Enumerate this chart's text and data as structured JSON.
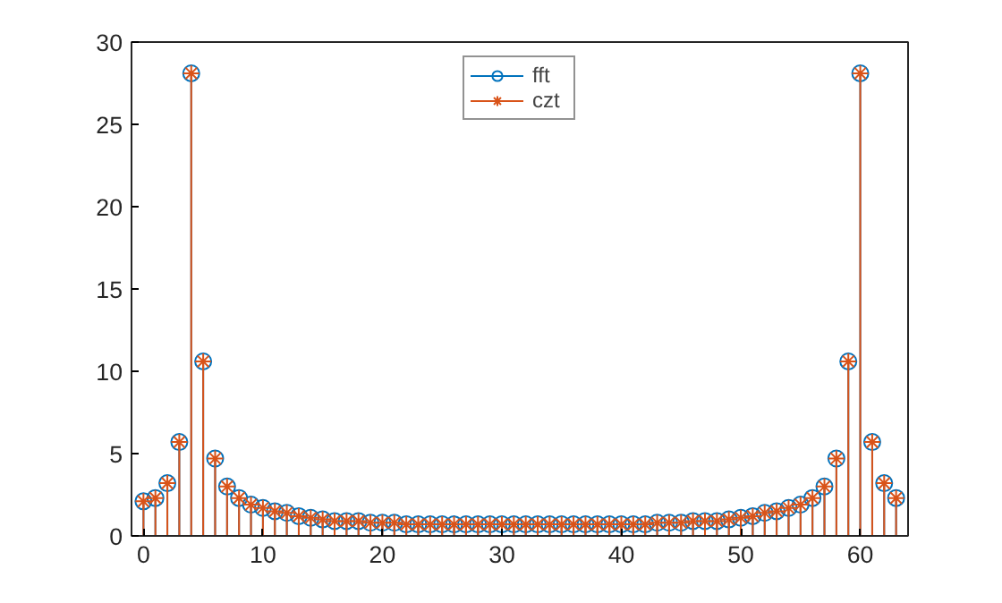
{
  "chart_data": {
    "type": "lollipop",
    "x": [
      0,
      1,
      2,
      3,
      4,
      5,
      6,
      7,
      8,
      9,
      10,
      11,
      12,
      13,
      14,
      15,
      16,
      17,
      18,
      19,
      20,
      21,
      22,
      23,
      24,
      25,
      26,
      27,
      28,
      29,
      30,
      31,
      32,
      33,
      34,
      35,
      36,
      37,
      38,
      39,
      40,
      41,
      42,
      43,
      44,
      45,
      46,
      47,
      48,
      49,
      50,
      51,
      52,
      53,
      54,
      55,
      56,
      57,
      58,
      59,
      60,
      61,
      62,
      63
    ],
    "series": [
      {
        "name": "fft",
        "color": "#0072bd",
        "marker": "circle",
        "values": [
          2.1,
          2.3,
          3.2,
          5.7,
          28.1,
          10.6,
          4.7,
          3.0,
          2.3,
          1.9,
          1.7,
          1.5,
          1.4,
          1.2,
          1.1,
          1.0,
          0.9,
          0.9,
          0.9,
          0.8,
          0.8,
          0.8,
          0.7,
          0.7,
          0.7,
          0.7,
          0.7,
          0.7,
          0.7,
          0.7,
          0.7,
          0.7,
          0.7,
          0.7,
          0.7,
          0.7,
          0.7,
          0.7,
          0.7,
          0.7,
          0.7,
          0.7,
          0.7,
          0.8,
          0.8,
          0.8,
          0.9,
          0.9,
          0.9,
          1.0,
          1.1,
          1.2,
          1.4,
          1.5,
          1.7,
          1.9,
          2.3,
          3.0,
          4.7,
          10.6,
          28.1,
          5.7,
          3.2,
          2.3
        ]
      },
      {
        "name": "czt",
        "color": "#d95319",
        "marker": "cross",
        "values": [
          2.1,
          2.3,
          3.2,
          5.7,
          28.1,
          10.6,
          4.7,
          3.0,
          2.3,
          1.9,
          1.7,
          1.5,
          1.4,
          1.2,
          1.1,
          1.0,
          0.9,
          0.9,
          0.9,
          0.8,
          0.8,
          0.8,
          0.7,
          0.7,
          0.7,
          0.7,
          0.7,
          0.7,
          0.7,
          0.7,
          0.7,
          0.7,
          0.7,
          0.7,
          0.7,
          0.7,
          0.7,
          0.7,
          0.7,
          0.7,
          0.7,
          0.7,
          0.7,
          0.8,
          0.8,
          0.8,
          0.9,
          0.9,
          0.9,
          1.0,
          1.1,
          1.2,
          1.4,
          1.5,
          1.7,
          1.9,
          2.3,
          3.0,
          4.7,
          10.6,
          28.1,
          5.7,
          3.2,
          2.3
        ]
      }
    ],
    "xlim": [
      -1,
      64
    ],
    "xticks": [
      0,
      10,
      20,
      30,
      40,
      50,
      60
    ],
    "ylim": [
      0,
      30
    ],
    "yticks": [
      0,
      5,
      10,
      15,
      20,
      25,
      30
    ],
    "grid": false,
    "legend": "top"
  }
}
